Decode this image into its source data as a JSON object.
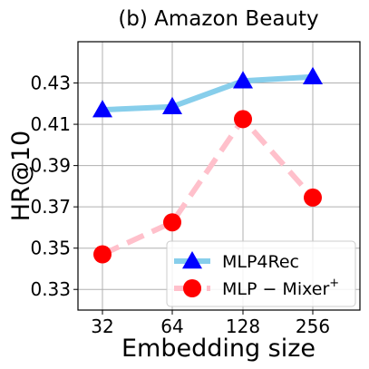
{
  "chart_data": {
    "type": "line",
    "title": "(b) Amazon Beauty",
    "xlabel": "Embedding size",
    "ylabel": "HR@10",
    "categories": [
      "32",
      "64",
      "128",
      "256"
    ],
    "ylim": [
      0.32,
      0.45
    ],
    "yticks": [
      0.33,
      0.35,
      0.37,
      0.39,
      0.41,
      0.43
    ],
    "ytick_labels": [
      "0.33",
      "0.35",
      "0.37",
      "0.39",
      "0.41",
      "0.43"
    ],
    "grid": true,
    "legend_position": "lower-right",
    "series": [
      {
        "name": "MLP4Rec",
        "values": [
          0.417,
          0.4185,
          0.431,
          0.433
        ],
        "line_color": "#87ceeb",
        "marker": "triangle",
        "marker_color": "#0000ff",
        "line_style": "solid"
      },
      {
        "name": "MLP − Mixer",
        "name_superscript": "+",
        "values": [
          0.347,
          0.3625,
          0.4125,
          0.3745
        ],
        "line_color": "#ffc0cb",
        "marker": "circle",
        "marker_color": "#ff0000",
        "line_style": "dashed"
      }
    ]
  }
}
